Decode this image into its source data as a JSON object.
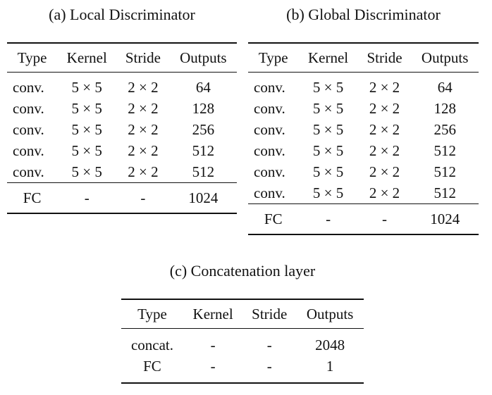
{
  "local": {
    "caption": "(a) Local Discriminator",
    "headers": [
      "Type",
      "Kernel",
      "Stride",
      "Outputs"
    ],
    "rows": [
      [
        "conv.",
        "5 × 5",
        "2 × 2",
        "64"
      ],
      [
        "conv.",
        "5 × 5",
        "2 × 2",
        "128"
      ],
      [
        "conv.",
        "5 × 5",
        "2 × 2",
        "256"
      ],
      [
        "conv.",
        "5 × 5",
        "2 × 2",
        "512"
      ],
      [
        "conv.",
        "5 × 5",
        "2 × 2",
        "512"
      ]
    ],
    "fc": [
      "FC",
      "-",
      "-",
      "1024"
    ]
  },
  "global": {
    "caption": "(b) Global Discriminator",
    "headers": [
      "Type",
      "Kernel",
      "Stride",
      "Outputs"
    ],
    "rows": [
      [
        "conv.",
        "5 × 5",
        "2 × 2",
        "64"
      ],
      [
        "conv.",
        "5 × 5",
        "2 × 2",
        "128"
      ],
      [
        "conv.",
        "5 × 5",
        "2 × 2",
        "256"
      ],
      [
        "conv.",
        "5 × 5",
        "2 × 2",
        "512"
      ],
      [
        "conv.",
        "5 × 5",
        "2 × 2",
        "512"
      ],
      [
        "conv.",
        "5 × 5",
        "2 × 2",
        "512"
      ]
    ],
    "fc": [
      "FC",
      "-",
      "-",
      "1024"
    ]
  },
  "concat": {
    "caption": "(c) Concatenation layer",
    "headers": [
      "Type",
      "Kernel",
      "Stride",
      "Outputs"
    ],
    "rows": [
      [
        "concat.",
        "-",
        "-",
        "2048"
      ],
      [
        "FC",
        "-",
        "-",
        "1"
      ]
    ]
  }
}
